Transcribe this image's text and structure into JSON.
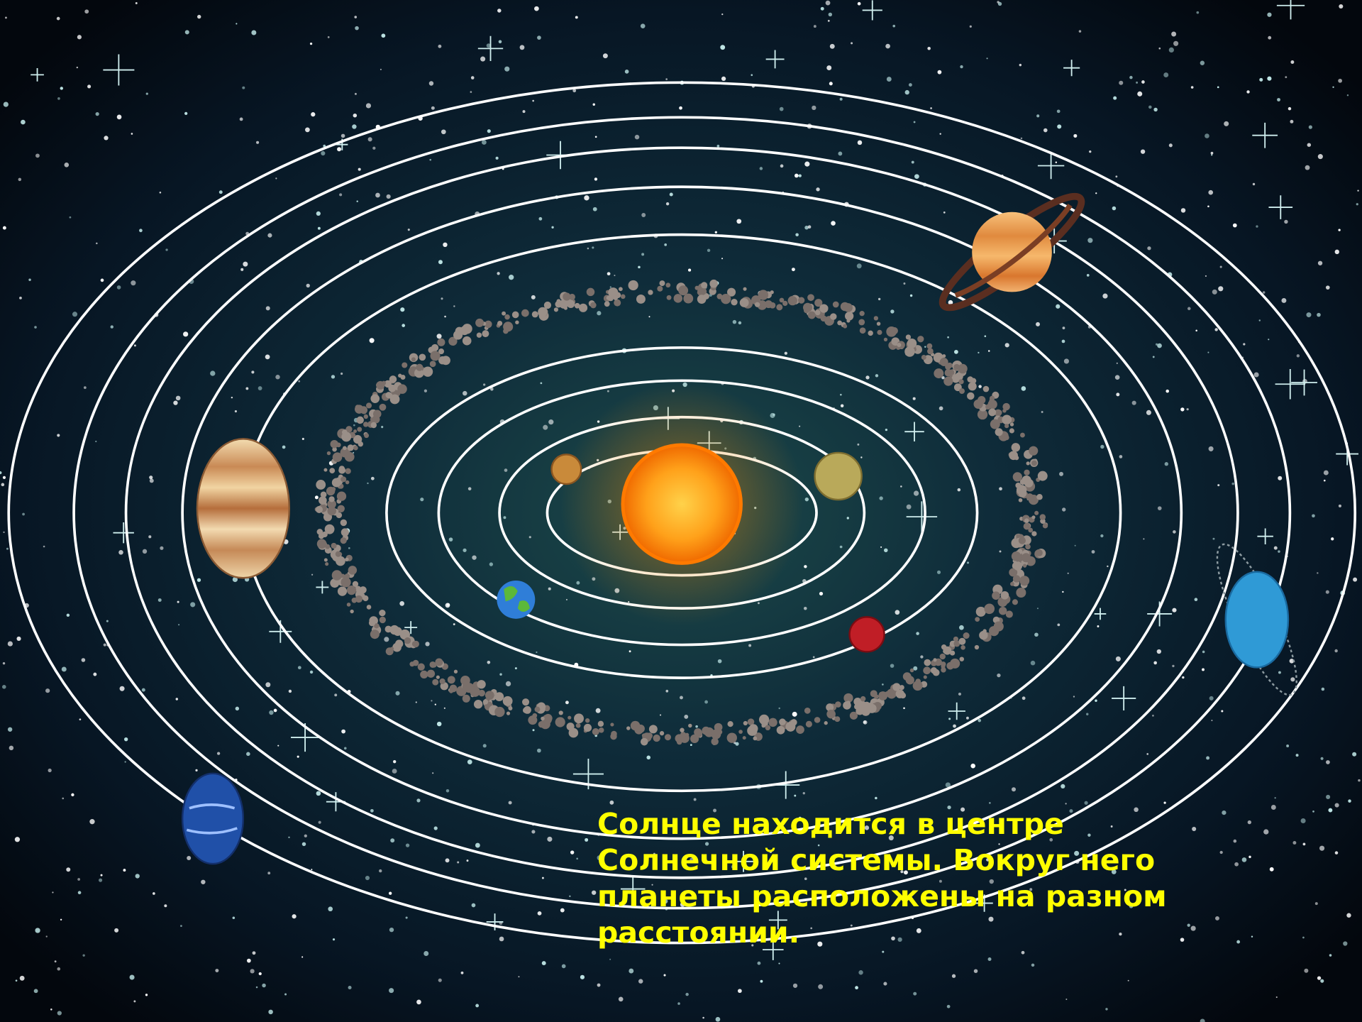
{
  "caption": "Солнце находится в центре Солнечной системы. Вокруг него планеты расположены на разном расстоянии."
}
